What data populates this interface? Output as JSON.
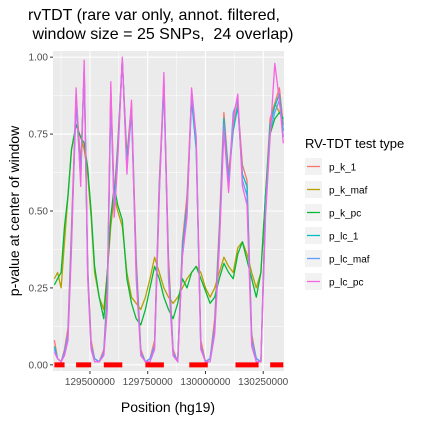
{
  "chart_data": {
    "type": "line",
    "title_lines": [
      "rvTDT (rare var only, annot. filtered,",
      " window size = 25 SNPs,  24 overlap)"
    ],
    "xlabel": "Position (hg19)",
    "ylabel": "p-value at center of window",
    "xlim": [
      129340000,
      130340000
    ],
    "ylim": [
      -0.02,
      1.02
    ],
    "x_ticks": [
      129500000,
      129750000,
      130000000,
      130250000
    ],
    "x_tick_labels": [
      "129500000",
      "129750000",
      "130000000",
      "130250000"
    ],
    "y_ticks": [
      0,
      0.25,
      0.5,
      0.75,
      1.0
    ],
    "y_tick_labels": [
      "0.00",
      "0.25",
      "0.50",
      "0.75",
      "1.00"
    ],
    "grid": true,
    "legend_title": "RV-TDT test type",
    "legend_position": "right",
    "series": [
      {
        "name": "p_k_1",
        "color": "#F8766D",
        "x": [
          129346000,
          129360000,
          129375000,
          129390000,
          129405000,
          129420000,
          129440000,
          129460000,
          129475000,
          129490000,
          129505000,
          129520000,
          129540000,
          129560000,
          129575000,
          129590000,
          129605000,
          129620000,
          129640000,
          129660000,
          129680000,
          129700000,
          129720000,
          129740000,
          129760000,
          129780000,
          129800000,
          129820000,
          129840000,
          129860000,
          129880000,
          129900000,
          129920000,
          129940000,
          129960000,
          129980000,
          130000000,
          130020000,
          130040000,
          130060000,
          130080000,
          130100000,
          130120000,
          130140000,
          130160000,
          130180000,
          130200000,
          130220000,
          130240000,
          130260000,
          130280000,
          130300000,
          130320000,
          130337000
        ],
        "y": [
          0.08,
          0.02,
          0.01,
          0.05,
          0.12,
          0.45,
          0.88,
          0.65,
          0.95,
          0.32,
          0.08,
          0.02,
          0.01,
          0.05,
          0.25,
          0.9,
          0.55,
          0.72,
          0.99,
          0.68,
          0.85,
          0.35,
          0.05,
          0.01,
          0.02,
          0.08,
          0.6,
          0.92,
          0.35,
          0.05,
          0.01,
          0.4,
          0.55,
          0.88,
          0.72,
          0.08,
          0.01,
          0.02,
          0.15,
          0.45,
          0.82,
          0.62,
          0.78,
          0.85,
          0.65,
          0.6,
          0.1,
          0.02,
          0.01,
          0.55,
          0.8,
          0.85,
          0.9,
          0.78
        ]
      },
      {
        "name": "p_k_maf",
        "color": "#B79F00",
        "x": [
          129346000,
          129360000,
          129375000,
          129390000,
          129405000,
          129420000,
          129440000,
          129460000,
          129475000,
          129490000,
          129505000,
          129520000,
          129540000,
          129560000,
          129575000,
          129590000,
          129605000,
          129620000,
          129640000,
          129660000,
          129680000,
          129700000,
          129720000,
          129740000,
          129760000,
          129780000,
          129800000,
          129820000,
          129840000,
          129860000,
          129880000,
          129900000,
          129920000,
          129940000,
          129960000,
          129980000,
          130000000,
          130020000,
          130040000,
          130060000,
          130080000,
          130100000,
          130120000,
          130140000,
          130160000,
          130180000,
          130200000,
          130220000,
          130240000,
          130260000,
          130280000,
          130300000,
          130320000,
          130337000
        ],
        "y": [
          0.28,
          0.3,
          0.25,
          0.4,
          0.55,
          0.7,
          0.78,
          0.74,
          0.7,
          0.62,
          0.48,
          0.3,
          0.22,
          0.18,
          0.3,
          0.45,
          0.55,
          0.5,
          0.45,
          0.3,
          0.22,
          0.2,
          0.18,
          0.22,
          0.28,
          0.35,
          0.3,
          0.25,
          0.22,
          0.2,
          0.22,
          0.25,
          0.28,
          0.3,
          0.32,
          0.3,
          0.25,
          0.22,
          0.25,
          0.3,
          0.35,
          0.32,
          0.3,
          0.38,
          0.4,
          0.36,
          0.3,
          0.25,
          0.3,
          0.55,
          0.78,
          0.85,
          0.82,
          0.8
        ]
      },
      {
        "name": "p_k_pc",
        "color": "#00BA38",
        "x": [
          129346000,
          129360000,
          129375000,
          129390000,
          129405000,
          129420000,
          129440000,
          129460000,
          129475000,
          129490000,
          129505000,
          129520000,
          129540000,
          129560000,
          129575000,
          129590000,
          129605000,
          129620000,
          129640000,
          129660000,
          129680000,
          129700000,
          129720000,
          129740000,
          129760000,
          129780000,
          129800000,
          129820000,
          129840000,
          129860000,
          129880000,
          129900000,
          129920000,
          129940000,
          129960000,
          129980000,
          130000000,
          130020000,
          130040000,
          130060000,
          130080000,
          130100000,
          130120000,
          130140000,
          130160000,
          130180000,
          130200000,
          130220000,
          130240000,
          130260000,
          130280000,
          130300000,
          130320000,
          130337000
        ],
        "y": [
          0.26,
          0.28,
          0.3,
          0.45,
          0.55,
          0.7,
          0.78,
          0.74,
          0.72,
          0.64,
          0.5,
          0.32,
          0.22,
          0.15,
          0.3,
          0.48,
          0.58,
          0.52,
          0.47,
          0.28,
          0.2,
          0.15,
          0.13,
          0.18,
          0.25,
          0.32,
          0.28,
          0.22,
          0.18,
          0.15,
          0.2,
          0.28,
          0.25,
          0.3,
          0.32,
          0.28,
          0.24,
          0.2,
          0.22,
          0.28,
          0.33,
          0.3,
          0.28,
          0.36,
          0.4,
          0.34,
          0.28,
          0.22,
          0.3,
          0.55,
          0.75,
          0.8,
          0.82,
          0.8
        ]
      },
      {
        "name": "p_lc_1",
        "color": "#00BFC4",
        "x": [
          129346000,
          129360000,
          129375000,
          129390000,
          129405000,
          129420000,
          129440000,
          129460000,
          129475000,
          129490000,
          129505000,
          129520000,
          129540000,
          129560000,
          129575000,
          129590000,
          129605000,
          129620000,
          129640000,
          129660000,
          129680000,
          129700000,
          129720000,
          129740000,
          129760000,
          129780000,
          129800000,
          129820000,
          129840000,
          129860000,
          129880000,
          129900000,
          129920000,
          129940000,
          129960000,
          129980000,
          130000000,
          130020000,
          130040000,
          130060000,
          130080000,
          130100000,
          130120000,
          130140000,
          130160000,
          130180000,
          130200000,
          130220000,
          130240000,
          130260000,
          130280000,
          130300000,
          130320000,
          130337000
        ],
        "y": [
          0.06,
          0.02,
          0.01,
          0.04,
          0.1,
          0.42,
          0.86,
          0.62,
          0.96,
          0.3,
          0.06,
          0.02,
          0.01,
          0.04,
          0.22,
          0.88,
          0.52,
          0.7,
          0.99,
          0.66,
          0.84,
          0.32,
          0.04,
          0.01,
          0.02,
          0.06,
          0.58,
          0.9,
          0.32,
          0.04,
          0.01,
          0.38,
          0.52,
          0.86,
          0.7,
          0.06,
          0.01,
          0.02,
          0.12,
          0.42,
          0.8,
          0.6,
          0.76,
          0.84,
          0.62,
          0.58,
          0.08,
          0.02,
          0.01,
          0.52,
          0.78,
          0.84,
          0.88,
          0.76
        ]
      },
      {
        "name": "p_lc_maf",
        "color": "#619CFF",
        "x": [
          129346000,
          129360000,
          129375000,
          129390000,
          129405000,
          129420000,
          129440000,
          129460000,
          129475000,
          129490000,
          129505000,
          129520000,
          129540000,
          129560000,
          129575000,
          129590000,
          129605000,
          129620000,
          129640000,
          129660000,
          129680000,
          129700000,
          129720000,
          129740000,
          129760000,
          129780000,
          129800000,
          129820000,
          129840000,
          129860000,
          129880000,
          129900000,
          129920000,
          129940000,
          129960000,
          129980000,
          130000000,
          130020000,
          130040000,
          130060000,
          130080000,
          130100000,
          130120000,
          130140000,
          130160000,
          130180000,
          130200000,
          130220000,
          130240000,
          130260000,
          130280000,
          130300000,
          130320000,
          130337000
        ],
        "y": [
          0.05,
          0.02,
          0.01,
          0.04,
          0.1,
          0.4,
          0.85,
          0.6,
          0.97,
          0.3,
          0.06,
          0.02,
          0.01,
          0.04,
          0.2,
          0.86,
          0.5,
          0.68,
          0.99,
          0.64,
          0.82,
          0.3,
          0.04,
          0.01,
          0.02,
          0.06,
          0.56,
          0.92,
          0.3,
          0.04,
          0.01,
          0.36,
          0.5,
          0.88,
          0.72,
          0.06,
          0.01,
          0.02,
          0.12,
          0.4,
          0.78,
          0.58,
          0.82,
          0.86,
          0.6,
          0.55,
          0.08,
          0.02,
          0.01,
          0.5,
          0.76,
          0.82,
          0.86,
          0.74
        ]
      },
      {
        "name": "p_lc_pc",
        "color": "#F564E3",
        "x": [
          129346000,
          129360000,
          129375000,
          129390000,
          129405000,
          129420000,
          129440000,
          129460000,
          129475000,
          129490000,
          129505000,
          129520000,
          129540000,
          129560000,
          129575000,
          129590000,
          129605000,
          129620000,
          129640000,
          129660000,
          129680000,
          129700000,
          129720000,
          129740000,
          129760000,
          129780000,
          129800000,
          129820000,
          129840000,
          129860000,
          129880000,
          129900000,
          129920000,
          129940000,
          129960000,
          129980000,
          130000000,
          130020000,
          130040000,
          130060000,
          130080000,
          130100000,
          130120000,
          130140000,
          130160000,
          130180000,
          130200000,
          130220000,
          130240000,
          130260000,
          130280000,
          130300000,
          130320000,
          130337000
        ],
        "y": [
          0.04,
          0.02,
          0.01,
          0.03,
          0.08,
          0.38,
          0.9,
          0.58,
          0.99,
          0.28,
          0.05,
          0.01,
          0.01,
          0.03,
          0.18,
          0.92,
          0.48,
          0.66,
          1.0,
          0.62,
          0.86,
          0.28,
          0.03,
          0.01,
          0.01,
          0.05,
          0.55,
          0.95,
          0.28,
          0.03,
          0.01,
          0.35,
          0.48,
          0.9,
          0.74,
          0.05,
          0.01,
          0.01,
          0.1,
          0.38,
          0.76,
          0.56,
          0.8,
          0.88,
          0.58,
          0.52,
          0.06,
          0.01,
          0.01,
          0.48,
          0.74,
          0.98,
          0.86,
          0.72
        ]
      }
    ],
    "red_segments": [
      [
        129346000,
        129390000
      ],
      [
        129440000,
        129505000
      ],
      [
        129560000,
        129640000
      ],
      [
        129740000,
        129820000
      ],
      [
        129930000,
        130010000
      ],
      [
        130130000,
        130230000
      ],
      [
        130280000,
        130337000
      ]
    ],
    "red_segment_color": "#FF0000"
  }
}
